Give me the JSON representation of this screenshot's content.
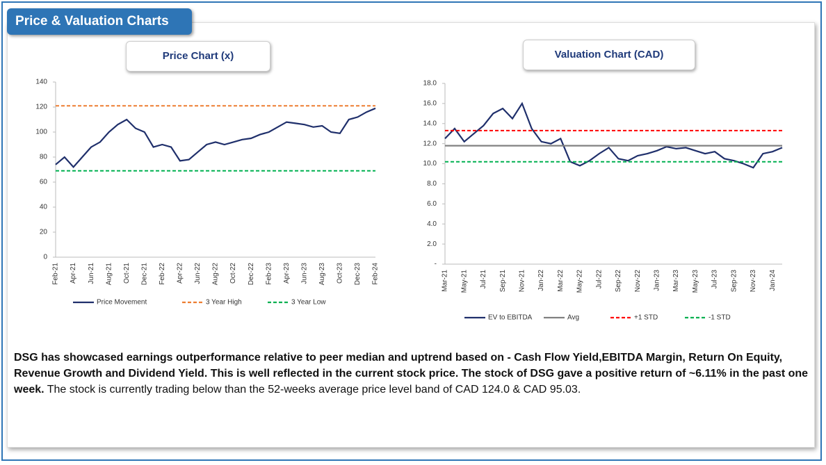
{
  "header": {
    "title": "Price & Valuation Charts"
  },
  "chart_data": [
    {
      "type": "line",
      "title": "Price Chart (x)",
      "categories": [
        "Feb-21",
        null,
        "Apr-21",
        null,
        "Jun-21",
        null,
        "Aug-21",
        null,
        "Oct-21",
        null,
        "Dec-21",
        null,
        "Feb-22",
        null,
        "Apr-22",
        null,
        "Jun-22",
        null,
        "Aug-22",
        null,
        "Oct-22",
        null,
        "Dec-22",
        null,
        "Feb-23",
        null,
        "Apr-23",
        null,
        "Jun-23",
        null,
        "Aug-23",
        null,
        "Oct-23",
        null,
        "Dec-23",
        null,
        "Feb-24"
      ],
      "series": [
        {
          "name": "Price Movement",
          "color": "#1f2f6b",
          "dashed": false,
          "values": [
            74,
            80,
            72,
            80,
            88,
            92,
            100,
            106,
            110,
            103,
            100,
            88,
            90,
            88,
            77,
            78,
            84,
            90,
            92,
            90,
            92,
            94,
            95,
            98,
            100,
            104,
            108,
            107,
            106,
            104,
            105,
            100,
            99,
            110,
            112,
            116,
            119
          ]
        },
        {
          "name": "3 Year High",
          "color": "#ed7d31",
          "dashed": true,
          "values": [
            121,
            121,
            121,
            121,
            121,
            121,
            121,
            121,
            121,
            121,
            121,
            121,
            121,
            121,
            121,
            121,
            121,
            121,
            121,
            121,
            121,
            121,
            121,
            121,
            121,
            121,
            121,
            121,
            121,
            121,
            121,
            121,
            121,
            121,
            121,
            121,
            121
          ]
        },
        {
          "name": "3 Year Low",
          "color": "#00b050",
          "dashed": true,
          "values": [
            69,
            69,
            69,
            69,
            69,
            69,
            69,
            69,
            69,
            69,
            69,
            69,
            69,
            69,
            69,
            69,
            69,
            69,
            69,
            69,
            69,
            69,
            69,
            69,
            69,
            69,
            69,
            69,
            69,
            69,
            69,
            69,
            69,
            69,
            69,
            69,
            69
          ]
        }
      ],
      "ylim": [
        0,
        140
      ],
      "yticks": [
        0,
        20,
        40,
        60,
        80,
        100,
        120,
        140
      ],
      "legend": "bottom"
    },
    {
      "type": "line",
      "title": "Valuation Chart (CAD)",
      "categories": [
        "Mar-21",
        null,
        "May-21",
        null,
        "Jul-21",
        null,
        "Sep-21",
        null,
        "Nov-21",
        null,
        "Jan-22",
        null,
        "Mar-22",
        null,
        "May-22",
        null,
        "Jul-22",
        null,
        "Sep-22",
        null,
        "Nov-22",
        null,
        "Jan-23",
        null,
        "Mar-23",
        null,
        "May-23",
        null,
        "Jul-23",
        null,
        "Sep-23",
        null,
        "Nov-23",
        null,
        "Jan-24",
        null
      ],
      "series": [
        {
          "name": "EV to EBITDA",
          "color": "#1f2f6b",
          "dashed": false,
          "values": [
            12.5,
            13.5,
            12.2,
            13.0,
            13.8,
            15.0,
            15.5,
            14.5,
            16.0,
            13.5,
            12.2,
            12.0,
            12.5,
            10.2,
            9.8,
            10.3,
            11.0,
            11.6,
            10.5,
            10.3,
            10.8,
            11.0,
            11.3,
            11.7,
            11.5,
            11.6,
            11.3,
            11.0,
            11.2,
            10.5,
            10.3,
            10.0,
            9.6,
            11.0,
            11.2,
            11.6
          ]
        },
        {
          "name": "Avg",
          "color": "#808080",
          "dashed": false,
          "values": [
            11.8,
            11.8,
            11.8,
            11.8,
            11.8,
            11.8,
            11.8,
            11.8,
            11.8,
            11.8,
            11.8,
            11.8,
            11.8,
            11.8,
            11.8,
            11.8,
            11.8,
            11.8,
            11.8,
            11.8,
            11.8,
            11.8,
            11.8,
            11.8,
            11.8,
            11.8,
            11.8,
            11.8,
            11.8,
            11.8,
            11.8,
            11.8,
            11.8,
            11.8,
            11.8,
            11.8
          ]
        },
        {
          "name": "+1 STD",
          "color": "#ff0000",
          "dashed": true,
          "values": [
            13.3,
            13.3,
            13.3,
            13.3,
            13.3,
            13.3,
            13.3,
            13.3,
            13.3,
            13.3,
            13.3,
            13.3,
            13.3,
            13.3,
            13.3,
            13.3,
            13.3,
            13.3,
            13.3,
            13.3,
            13.3,
            13.3,
            13.3,
            13.3,
            13.3,
            13.3,
            13.3,
            13.3,
            13.3,
            13.3,
            13.3,
            13.3,
            13.3,
            13.3,
            13.3,
            13.3
          ]
        },
        {
          "name": "-1 STD",
          "color": "#00b050",
          "dashed": true,
          "values": [
            10.2,
            10.2,
            10.2,
            10.2,
            10.2,
            10.2,
            10.2,
            10.2,
            10.2,
            10.2,
            10.2,
            10.2,
            10.2,
            10.2,
            10.2,
            10.2,
            10.2,
            10.2,
            10.2,
            10.2,
            10.2,
            10.2,
            10.2,
            10.2,
            10.2,
            10.2,
            10.2,
            10.2,
            10.2,
            10.2,
            10.2,
            10.2,
            10.2,
            10.2,
            10.2,
            10.2
          ]
        }
      ],
      "ylim": [
        0,
        18
      ],
      "yticks": [
        {
          "value": 0,
          "label": "-"
        },
        {
          "value": 2,
          "label": "2.0"
        },
        {
          "value": 4,
          "label": "4.0"
        },
        {
          "value": 6,
          "label": "6.0"
        },
        {
          "value": 8,
          "label": "8.0"
        },
        {
          "value": 10,
          "label": "10.0"
        },
        {
          "value": 12,
          "label": "12.0"
        },
        {
          "value": 14,
          "label": "14.0"
        },
        {
          "value": 16,
          "label": "16.0"
        },
        {
          "value": 18,
          "label": "18.0"
        }
      ],
      "legend": "bottom"
    }
  ],
  "paragraph": {
    "bold": "DSG has showcased earnings outperformance relative to peer median and uptrend based on - Cash Flow Yield,EBITDA Margin, Return On Equity, Revenue Growth and Dividend Yield. This is well reflected in the current stock price. The stock of DSG gave a positive return of ~6.11% in the past one week.",
    "normal": "The stock is currently trading below than the 52-weeks average price level band of CAD 124.0 & CAD 95.03."
  }
}
